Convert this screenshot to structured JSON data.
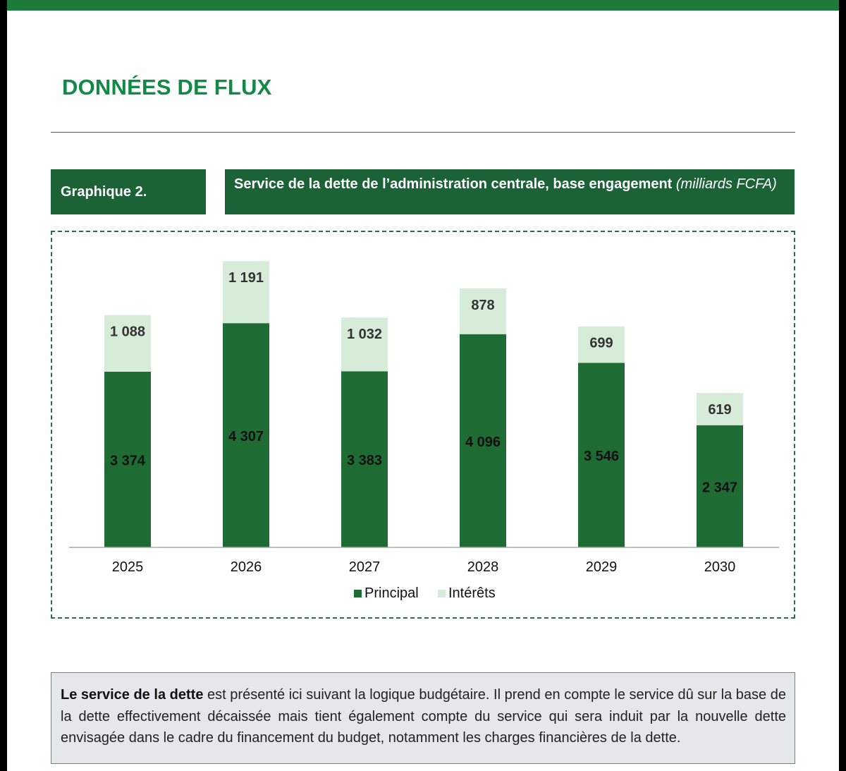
{
  "header": {
    "section_title": "DONNÉES DE FLUX"
  },
  "chart_header": {
    "label": "Graphique 2.",
    "title_main": "Service de la dette de l’administration centrale, base engagement",
    "title_unit": "(milliards FCFA)"
  },
  "chart_data": {
    "type": "bar",
    "stacked": true,
    "categories": [
      "2025",
      "2026",
      "2027",
      "2028",
      "2029",
      "2030"
    ],
    "series": [
      {
        "name": "Principal",
        "values": [
          3374,
          4307,
          3383,
          4096,
          3546,
          2347
        ],
        "color": "#1e6b34"
      },
      {
        "name": "Intérêts",
        "values": [
          1088,
          1191,
          1032,
          878,
          699,
          619
        ],
        "color": "#d6ecd9"
      }
    ],
    "value_labels": {
      "Principal": [
        "3 374",
        "4 307",
        "3 383",
        "4 096",
        "3 546",
        "2 347"
      ],
      "Intérêts": [
        "1 088",
        "1 191",
        "1 032",
        "878",
        "699",
        "619"
      ]
    },
    "ylim": [
      0,
      5500
    ],
    "grid": false,
    "legend_position": "bottom-center",
    "title": "",
    "xlabel": "",
    "ylabel": ""
  },
  "note": {
    "bold_text": "Le service de la dette",
    "text": " est présenté ici suivant la logique budgétaire. Il prend en compte le service dû sur la base de la dette effectivement décaissée mais tient également compte du service qui sera induit par la nouvelle dette envisagée dans le cadre du financement du budget, notamment les charges financières de la dette."
  },
  "colors": {
    "accent_green": "#1d7a3a",
    "title_green": "#118a45",
    "box_green": "#1b6336"
  }
}
